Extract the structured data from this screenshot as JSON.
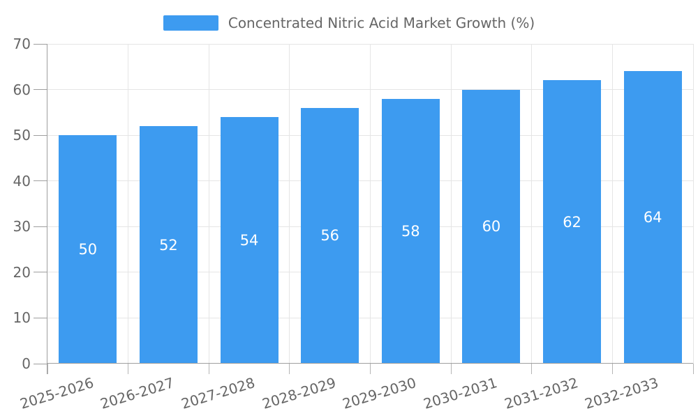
{
  "legend": {
    "label": "Concentrated Nitric Acid Market Growth (%)"
  },
  "chart_data": {
    "type": "bar",
    "title": "Concentrated Nitric Acid Market Growth (%)",
    "categories": [
      "2025-2026",
      "2026-2027",
      "2027-2028",
      "2028-2029",
      "2029-2030",
      "2030-2031",
      "2031-2032",
      "2032-2033"
    ],
    "values": [
      50,
      52,
      54,
      56,
      58,
      60,
      62,
      64
    ],
    "xlabel": "",
    "ylabel": "",
    "ylim": [
      0,
      70
    ],
    "y_ticks": [
      0,
      10,
      20,
      30,
      40,
      50,
      60,
      70
    ],
    "grid": true,
    "legend_position": "top",
    "x_label_rotation_deg": -17,
    "colors": {
      "bar": "#3d9bf0",
      "gridline": "#e5e5e5",
      "axis_line": "#9e9e9e",
      "tick_label": "#666666",
      "value_label": "#ffffff"
    }
  }
}
